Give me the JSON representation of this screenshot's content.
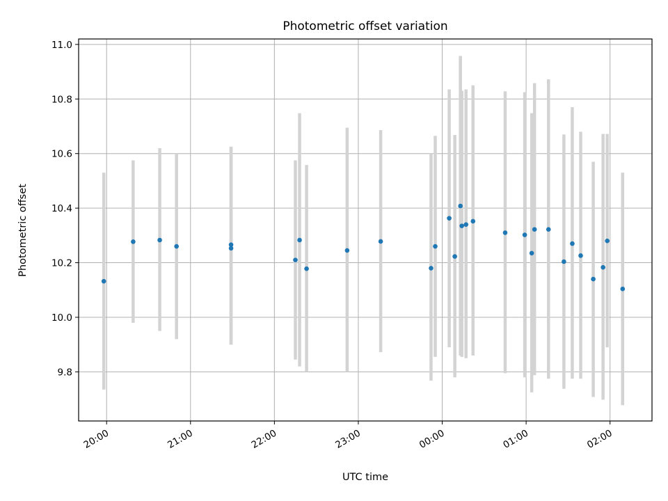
{
  "chart_data": {
    "type": "scatter",
    "title": "Photometric offset variation",
    "xlabel": "UTC time",
    "ylabel": "Photometric offset",
    "grid": true,
    "legend": "none",
    "x_ticks": [
      "20:00",
      "21:00",
      "22:00",
      "23:00",
      "00:00",
      "01:00",
      "02:00"
    ],
    "y_ticks": [
      "9.8",
      "10.0",
      "10.2",
      "10.4",
      "10.6",
      "10.8",
      "11.0"
    ],
    "xlim": [
      "19:40",
      "02:30"
    ],
    "ylim": [
      9.62,
      11.02
    ],
    "colors": {
      "point": "#1f77b4",
      "errorbar": "#d3d3d3",
      "grid": "#b0b0b0"
    },
    "points": [
      {
        "x": "19:58",
        "y": 10.132,
        "low": 9.735,
        "high": 10.53
      },
      {
        "x": "20:19",
        "y": 10.277,
        "low": 9.98,
        "high": 10.575
      },
      {
        "x": "20:38",
        "y": 10.283,
        "low": 9.95,
        "high": 10.62
      },
      {
        "x": "20:50",
        "y": 10.26,
        "low": 9.92,
        "high": 10.6
      },
      {
        "x": "21:29",
        "y": 10.266,
        "low": 9.9,
        "high": 10.625
      },
      {
        "x": "21:29",
        "y": 10.253,
        "low": 9.9,
        "high": 10.625
      },
      {
        "x": "22:15",
        "y": 10.21,
        "low": 9.845,
        "high": 10.575
      },
      {
        "x": "22:18",
        "y": 10.283,
        "low": 9.82,
        "high": 10.748
      },
      {
        "x": "22:23",
        "y": 10.178,
        "low": 9.8,
        "high": 10.558
      },
      {
        "x": "22:52",
        "y": 10.245,
        "low": 9.8,
        "high": 10.695
      },
      {
        "x": "23:16",
        "y": 10.278,
        "low": 9.872,
        "high": 10.686
      },
      {
        "x": "23:52",
        "y": 10.18,
        "low": 9.768,
        "high": 10.6
      },
      {
        "x": "23:55",
        "y": 10.26,
        "low": 9.855,
        "high": 10.665
      },
      {
        "x": "00:05",
        "y": 10.363,
        "low": 9.89,
        "high": 10.835
      },
      {
        "x": "00:09",
        "y": 10.223,
        "low": 9.78,
        "high": 10.668
      },
      {
        "x": "00:13",
        "y": 10.408,
        "low": 9.86,
        "high": 10.958
      },
      {
        "x": "00:14",
        "y": 10.335,
        "low": 9.855,
        "high": 10.83
      },
      {
        "x": "00:17",
        "y": 10.34,
        "low": 9.85,
        "high": 10.835
      },
      {
        "x": "00:22",
        "y": 10.352,
        "low": 9.86,
        "high": 10.85
      },
      {
        "x": "00:45",
        "y": 10.31,
        "low": 9.795,
        "high": 10.828
      },
      {
        "x": "00:59",
        "y": 10.302,
        "low": 9.78,
        "high": 10.825
      },
      {
        "x": "01:04",
        "y": 10.235,
        "low": 9.725,
        "high": 10.748
      },
      {
        "x": "01:06",
        "y": 10.322,
        "low": 9.788,
        "high": 10.858
      },
      {
        "x": "01:16",
        "y": 10.322,
        "low": 9.775,
        "high": 10.872
      },
      {
        "x": "01:27",
        "y": 10.204,
        "low": 9.738,
        "high": 10.67
      },
      {
        "x": "01:33",
        "y": 10.27,
        "low": 9.775,
        "high": 10.77
      },
      {
        "x": "01:39",
        "y": 10.226,
        "low": 9.775,
        "high": 10.68
      },
      {
        "x": "01:48",
        "y": 10.14,
        "low": 9.708,
        "high": 10.57
      },
      {
        "x": "01:55",
        "y": 10.183,
        "low": 9.698,
        "high": 10.672
      },
      {
        "x": "01:58",
        "y": 10.28,
        "low": 9.89,
        "high": 10.672
      },
      {
        "x": "02:09",
        "y": 10.104,
        "low": 9.678,
        "high": 10.53
      }
    ]
  }
}
